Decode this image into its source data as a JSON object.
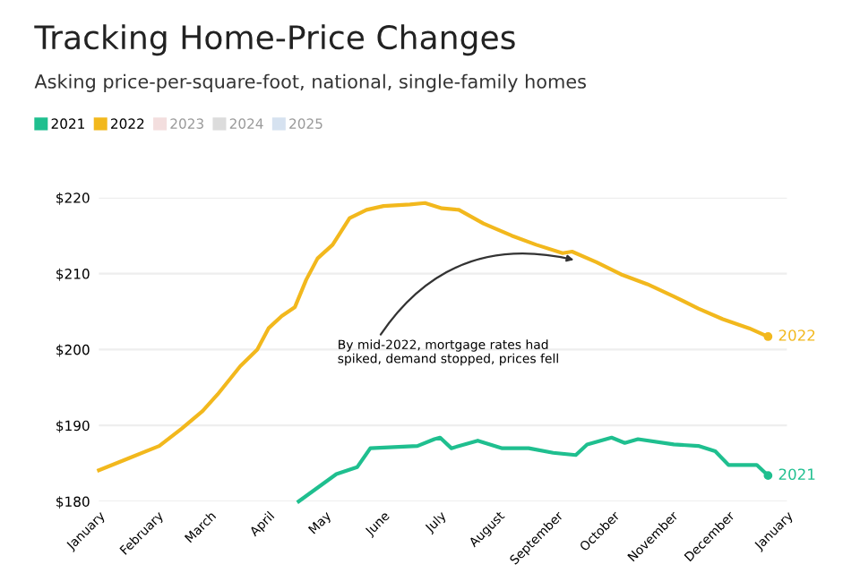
{
  "chart_data": {
    "type": "line",
    "title": "Tracking Home-Price Changes",
    "subtitle": "Asking price-per-square-foot, national, single-family homes",
    "xlim": [
      "2022-01-01",
      "2023-01-01"
    ],
    "xticks": [
      {
        "value": "2022-01-01",
        "label": "January"
      },
      {
        "value": "2022-02-01",
        "label": "February"
      },
      {
        "value": "2022-03-01",
        "label": "March"
      },
      {
        "value": "2022-04-01",
        "label": "April"
      },
      {
        "value": "2022-05-01",
        "label": "May"
      },
      {
        "value": "2022-06-01",
        "label": "June"
      },
      {
        "value": "2022-07-01",
        "label": "July"
      },
      {
        "value": "2022-08-01",
        "label": "August"
      },
      {
        "value": "2022-09-01",
        "label": "September"
      },
      {
        "value": "2022-10-01",
        "label": "October"
      },
      {
        "value": "2022-11-01",
        "label": "November"
      },
      {
        "value": "2022-12-01",
        "label": "December"
      },
      {
        "value": "2023-01-01",
        "label": "January"
      }
    ],
    "ylim": [
      180,
      220
    ],
    "yticks": [
      {
        "value": 180,
        "label": "$180"
      },
      {
        "value": 190,
        "label": "$190"
      },
      {
        "value": 200,
        "label": "$200"
      },
      {
        "value": 210,
        "label": "$210"
      },
      {
        "value": 220,
        "label": "$220"
      }
    ],
    "grid": "y",
    "legend": "top left",
    "marker": "none",
    "line_style": "solid",
    "annotations": [
      {
        "text": "By mid-2022, mortgage rates had\nspiked, demand stopped, prices fell",
        "x": "2022-09-10",
        "y": 211.8
      }
    ],
    "series": [
      {
        "name": "2021",
        "color": "#1fbf8f",
        "x": [
          "2022-04-17",
          "2022-05-07",
          "2022-05-18",
          "2022-05-25",
          "2022-06-19",
          "2022-06-28",
          "2022-07-01",
          "2022-07-07",
          "2022-07-21",
          "2022-08-03",
          "2022-08-17",
          "2022-08-30",
          "2022-09-11",
          "2022-09-17",
          "2022-09-30",
          "2022-10-07",
          "2022-10-14",
          "2022-11-02",
          "2022-11-15",
          "2022-11-24",
          "2022-12-01",
          "2022-12-16",
          "2022-12-22"
        ],
        "values": [
          180,
          183.6,
          184.5,
          187,
          187.3,
          188.2,
          188.4,
          187,
          188,
          187,
          187,
          186.4,
          186.1,
          187.5,
          188.4,
          187.7,
          188.2,
          187.5,
          187.3,
          186.6,
          184.8,
          184.8,
          183.4
        ]
      },
      {
        "name": "2022",
        "color": "#f2b81d",
        "x": [
          "2022-01-01",
          "2022-01-19",
          "2022-02-02",
          "2022-02-14",
          "2022-02-25",
          "2022-03-05",
          "2022-03-17",
          "2022-03-26",
          "2022-04-01",
          "2022-04-08",
          "2022-04-15",
          "2022-04-21",
          "2022-04-27",
          "2022-05-05",
          "2022-05-14",
          "2022-05-23",
          "2022-06-01",
          "2022-06-15",
          "2022-06-23",
          "2022-07-02",
          "2022-07-11",
          "2022-07-24",
          "2022-08-08",
          "2022-08-21",
          "2022-09-04",
          "2022-09-09",
          "2022-09-22",
          "2022-10-05",
          "2022-10-19",
          "2022-11-02",
          "2022-11-15",
          "2022-11-28",
          "2022-12-12",
          "2022-12-22"
        ],
        "values": [
          184.1,
          185.9,
          187.3,
          189.6,
          191.9,
          194.1,
          197.8,
          200,
          202.8,
          204.4,
          205.6,
          209.2,
          212,
          213.8,
          217.3,
          218.4,
          218.9,
          219.1,
          219.3,
          218.6,
          218.4,
          216.6,
          215,
          213.8,
          212.7,
          212.9,
          211.5,
          209.9,
          208.6,
          207,
          205.4,
          204,
          202.8,
          201.7
        ]
      },
      {
        "name": "2023",
        "color": "#f3dede"
      },
      {
        "name": "2024",
        "color": "#dcdcdc"
      },
      {
        "name": "2025",
        "color": "#d6e2f0"
      }
    ]
  }
}
